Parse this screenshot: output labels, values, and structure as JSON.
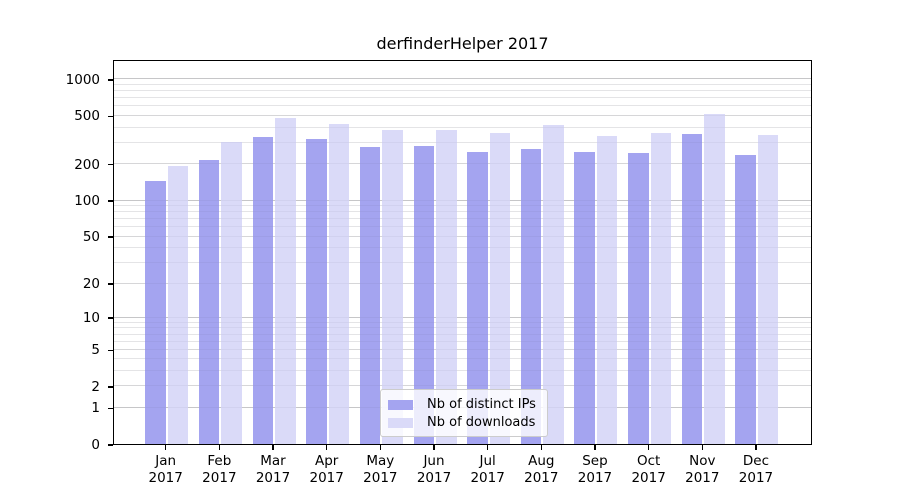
{
  "title": "derfinderHelper 2017",
  "chart_data": {
    "type": "bar",
    "title": "derfinderHelper 2017",
    "scale": "log1p",
    "categories": [
      "Jan",
      "Feb",
      "Mar",
      "Apr",
      "May",
      "Jun",
      "Jul",
      "Aug",
      "Sep",
      "Oct",
      "Nov",
      "Dec"
    ],
    "year_label": "2017",
    "series": [
      {
        "name": "Nb of distinct IPs",
        "color": "#a4a4f0",
        "values": [
          145,
          213,
          330,
          320,
          273,
          281,
          251,
          265,
          250,
          244,
          351,
          237
        ]
      },
      {
        "name": "Nb of downloads",
        "color": "#dadaf8",
        "values": [
          192,
          301,
          477,
          425,
          380,
          378,
          357,
          418,
          341,
          359,
          512,
          348
        ]
      }
    ],
    "xlabel": "",
    "ylabel": "",
    "y_ticks": [
      0,
      1,
      2,
      5,
      10,
      20,
      50,
      100,
      200,
      500,
      1000
    ],
    "y_minor_gridlines": [
      3,
      4,
      6,
      7,
      8,
      9,
      30,
      40,
      60,
      70,
      80,
      90,
      300,
      400,
      600,
      700,
      800,
      900
    ],
    "ylim": [
      0,
      1455
    ],
    "grid": true,
    "legend_position": "bottom-center"
  },
  "legend": {
    "items": [
      {
        "label": "Nb of distinct IPs"
      },
      {
        "label": "Nb of downloads"
      }
    ]
  }
}
